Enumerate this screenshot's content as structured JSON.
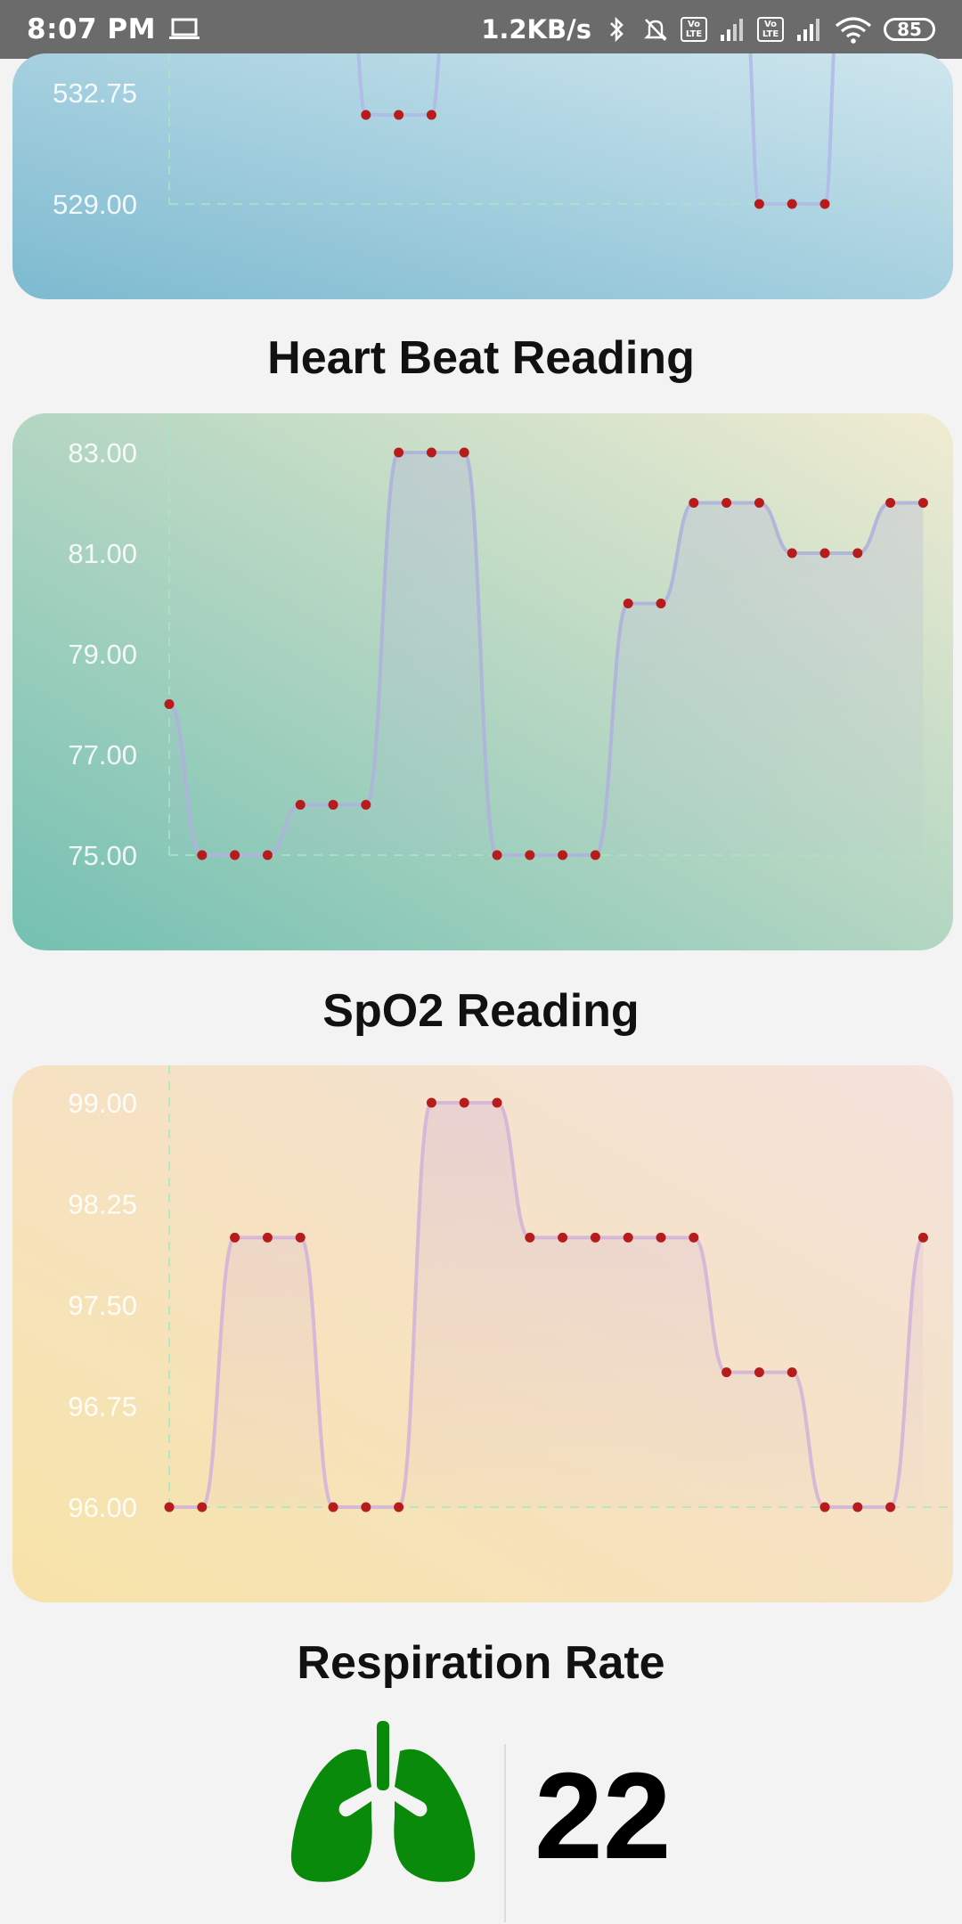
{
  "status_bar": {
    "time": "8:07 PM",
    "network_speed": "1.2KB/s",
    "volte1": "Vo LTE",
    "volte2": "Vo LTE",
    "battery": "85"
  },
  "charts": [
    {
      "id": "top",
      "title": "",
      "y_ticks": [
        "532.75",
        "529.00"
      ],
      "colors": {
        "start": "#7dbad0",
        "end": "#cfe6ee",
        "line": "#b0b8e6",
        "point": "#b71c1c"
      }
    },
    {
      "id": "heart",
      "title": "Heart Beat Reading",
      "y_ticks": [
        "83.00",
        "81.00",
        "79.00",
        "77.00",
        "75.00"
      ],
      "colors": {
        "start": "#74c0b2",
        "end": "#f1ecd2",
        "line": "#aeb2dc",
        "point": "#b71c1c"
      }
    },
    {
      "id": "spo2",
      "title": "SpO2 Reading",
      "y_ticks": [
        "99.00",
        "98.25",
        "97.50",
        "96.75",
        "96.00"
      ],
      "colors": {
        "start": "#f7e3a8",
        "end": "#f4e2dc",
        "line": "#d4b4d8",
        "point": "#b71c1c"
      }
    }
  ],
  "chart_data": [
    {
      "type": "line",
      "title": "",
      "xlabel": "",
      "ylabel": "",
      "ylim": [
        529.0,
        532.75
      ],
      "x": [
        6,
        7,
        8,
        18,
        19,
        20
      ],
      "values": [
        532.0,
        532.0,
        532.0,
        529.0,
        529.0,
        529.0
      ],
      "grid": true
    },
    {
      "type": "line",
      "title": "Heart Beat Reading",
      "xlabel": "",
      "ylabel": "",
      "ylim": [
        75,
        83
      ],
      "x": [
        0,
        1,
        2,
        3,
        4,
        5,
        6,
        7,
        8,
        9,
        10,
        11,
        12,
        13,
        14,
        15,
        16,
        17,
        18,
        19,
        20,
        21,
        22,
        23
      ],
      "values": [
        78,
        75,
        75,
        75,
        76,
        76,
        76,
        83,
        83,
        83,
        75,
        75,
        75,
        75,
        80,
        80,
        82,
        82,
        82,
        81,
        81,
        81,
        82,
        82
      ],
      "grid": true
    },
    {
      "type": "line",
      "title": "SpO2 Reading",
      "xlabel": "",
      "ylabel": "",
      "ylim": [
        96,
        99
      ],
      "x": [
        0,
        1,
        2,
        3,
        4,
        5,
        6,
        7,
        8,
        9,
        10,
        11,
        12,
        13,
        14,
        15,
        16,
        17,
        18,
        19,
        20,
        21,
        22,
        23
      ],
      "values": [
        96,
        96,
        98,
        98,
        98,
        96,
        96,
        96,
        99,
        99,
        99,
        98,
        98,
        98,
        98,
        98,
        98,
        97,
        97,
        97,
        96,
        96,
        96,
        98
      ],
      "grid": true
    }
  ],
  "respiration": {
    "title": "Respiration Rate",
    "value": "22",
    "icon": "lungs-icon",
    "icon_color": "#0a8a0a"
  }
}
